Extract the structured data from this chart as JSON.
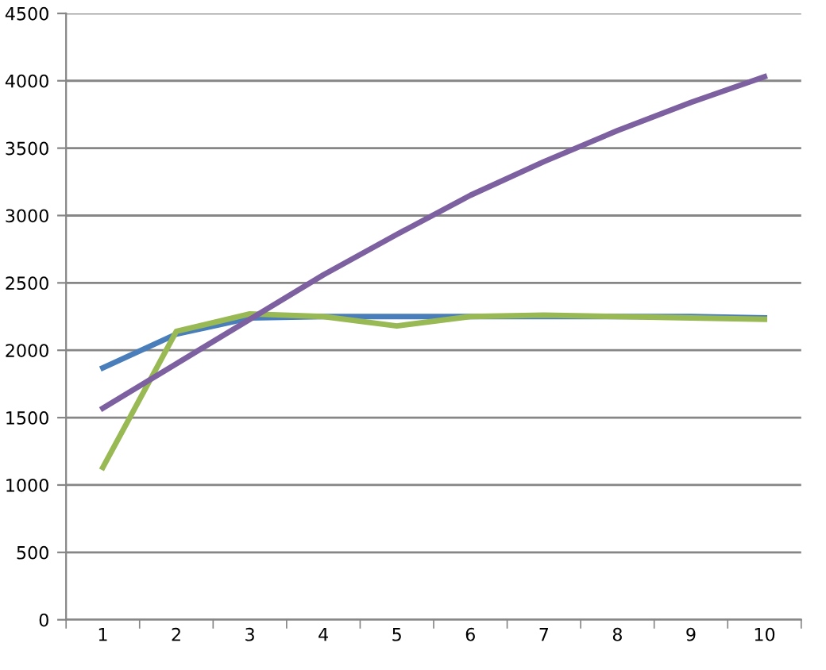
{
  "chart_data": {
    "type": "line",
    "categories": [
      "1",
      "2",
      "3",
      "4",
      "5",
      "6",
      "7",
      "8",
      "9",
      "10"
    ],
    "series": [
      {
        "color": "#4a7ebb",
        "values": [
          1870,
          2120,
          2240,
          2250,
          2250,
          2250,
          2250,
          2250,
          2250,
          2240
        ]
      },
      {
        "color": "#98b954",
        "values": [
          1130,
          2140,
          2270,
          2250,
          2180,
          2250,
          2260,
          2250,
          2240,
          2230
        ]
      },
      {
        "color": "#7d60a0",
        "values": [
          1570,
          1900,
          2230,
          2560,
          2860,
          3150,
          3400,
          3630,
          3840,
          4030
        ]
      }
    ],
    "ylim": [
      0,
      4500
    ],
    "yticks": [
      0,
      500,
      1000,
      1500,
      2000,
      2500,
      3000,
      3500,
      4000,
      4500
    ],
    "grid": "y",
    "marker": "none",
    "line_style": "solid"
  }
}
